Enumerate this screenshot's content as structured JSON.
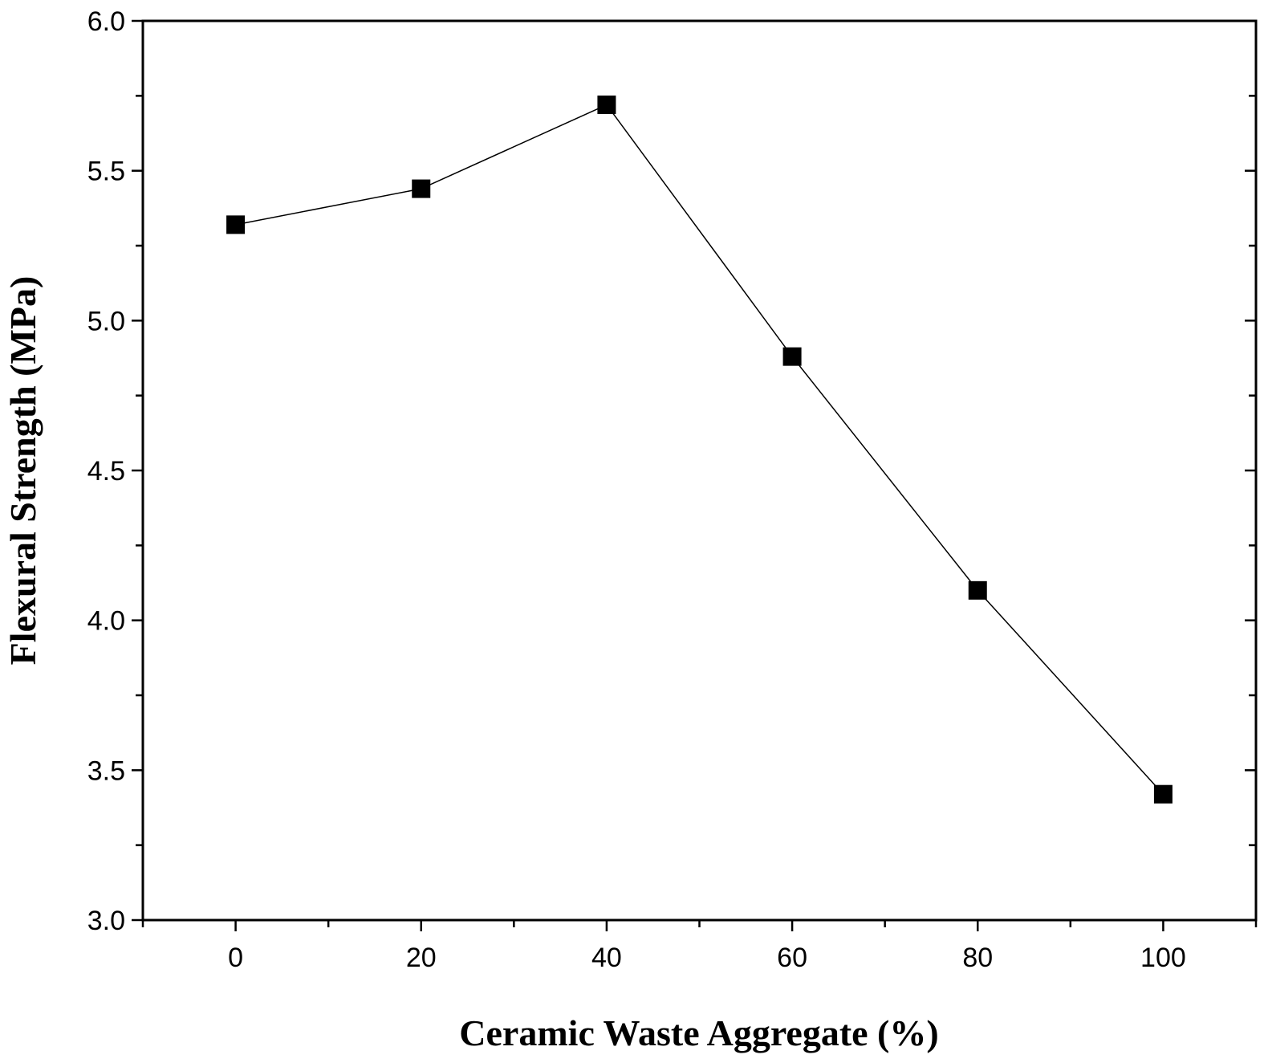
{
  "chart_data": {
    "type": "line",
    "title": "",
    "xlabel": "Ceramic Waste Aggregate (%)",
    "ylabel": "Flexural Strength (MPa)",
    "xlim": [
      -10,
      110
    ],
    "ylim": [
      3.0,
      6.0
    ],
    "x_ticks": [
      0,
      20,
      40,
      60,
      80,
      100
    ],
    "x_tick_labels": [
      "0",
      "20",
      "40",
      "60",
      "80",
      "100"
    ],
    "y_ticks": [
      3.0,
      3.5,
      4.0,
      4.5,
      5.0,
      5.5,
      6.0
    ],
    "y_tick_labels": [
      "3.0",
      "3.5",
      "4.0",
      "4.5",
      "5.0",
      "5.5",
      "6.0"
    ],
    "grid": false,
    "series": [
      {
        "x": [
          0,
          20,
          40,
          60,
          80,
          100
        ],
        "values": [
          5.32,
          5.44,
          5.72,
          4.88,
          4.1,
          3.42
        ],
        "marker": "square",
        "color": "#000000"
      }
    ]
  }
}
